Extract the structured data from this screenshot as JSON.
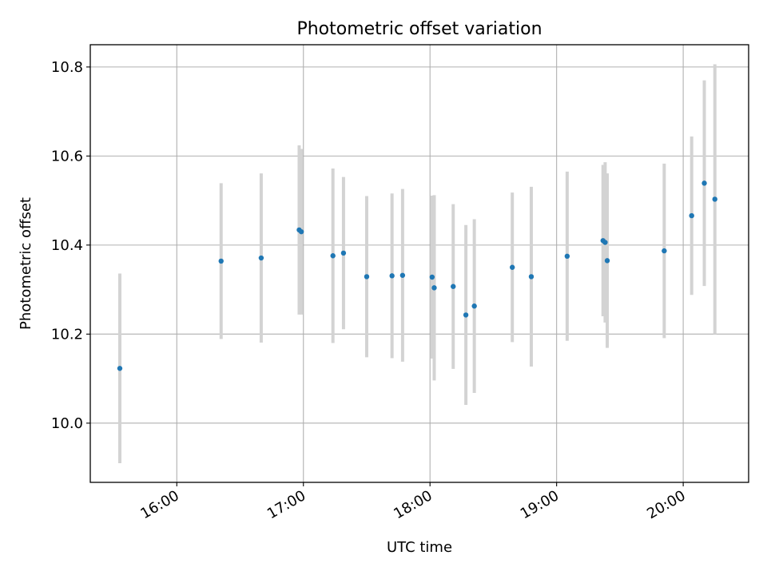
{
  "chart_data": {
    "type": "scatter",
    "title": "Photometric offset variation",
    "xlabel": "UTC time",
    "ylabel": "Photometric offset",
    "x_axis": {
      "type": "time",
      "range": [
        "15:19",
        "20:31"
      ],
      "ticks": [
        "16:00",
        "17:00",
        "18:00",
        "19:00",
        "20:00"
      ]
    },
    "y_axis": {
      "range": [
        9.867,
        10.85
      ],
      "ticks": [
        "10.0",
        "10.2",
        "10.4",
        "10.6",
        "10.8"
      ]
    },
    "grid": true,
    "colors": {
      "point": "#1f77b4",
      "errorbar": "#d3d3d3",
      "grid": "#b0b0b0"
    },
    "series": [
      {
        "points": [
          {
            "x": "15:33",
            "y": 10.123,
            "yerr": 0.213
          },
          {
            "x": "16:21",
            "y": 10.364,
            "yerr": 0.175
          },
          {
            "x": "16:40",
            "y": 10.371,
            "yerr": 0.19
          },
          {
            "x": "16:58",
            "y": 10.434,
            "yerr": 0.19
          },
          {
            "x": "16:59",
            "y": 10.43,
            "yerr": 0.186
          },
          {
            "x": "17:14",
            "y": 10.376,
            "yerr": 0.196
          },
          {
            "x": "17:19",
            "y": 10.382,
            "yerr": 0.171
          },
          {
            "x": "17:30",
            "y": 10.329,
            "yerr": 0.181
          },
          {
            "x": "17:42",
            "y": 10.331,
            "yerr": 0.185
          },
          {
            "x": "17:47",
            "y": 10.332,
            "yerr": 0.194
          },
          {
            "x": "18:01",
            "y": 10.328,
            "yerr": 0.183
          },
          {
            "x": "18:02",
            "y": 10.304,
            "yerr": 0.208
          },
          {
            "x": "18:11",
            "y": 10.307,
            "yerr": 0.185
          },
          {
            "x": "18:17",
            "y": 10.243,
            "yerr": 0.202
          },
          {
            "x": "18:21",
            "y": 10.263,
            "yerr": 0.195
          },
          {
            "x": "18:39",
            "y": 10.35,
            "yerr": 0.168
          },
          {
            "x": "18:48",
            "y": 10.329,
            "yerr": 0.202
          },
          {
            "x": "19:05",
            "y": 10.375,
            "yerr": 0.19
          },
          {
            "x": "19:22",
            "y": 10.41,
            "yerr": 0.17
          },
          {
            "x": "19:23",
            "y": 10.406,
            "yerr": 0.18
          },
          {
            "x": "19:24",
            "y": 10.365,
            "yerr": 0.196
          },
          {
            "x": "19:51",
            "y": 10.387,
            "yerr": 0.196
          },
          {
            "x": "20:04",
            "y": 10.466,
            "yerr": 0.178
          },
          {
            "x": "20:10",
            "y": 10.539,
            "yerr": 0.231
          },
          {
            "x": "20:15",
            "y": 10.503,
            "yerr": 0.303
          }
        ]
      }
    ]
  }
}
